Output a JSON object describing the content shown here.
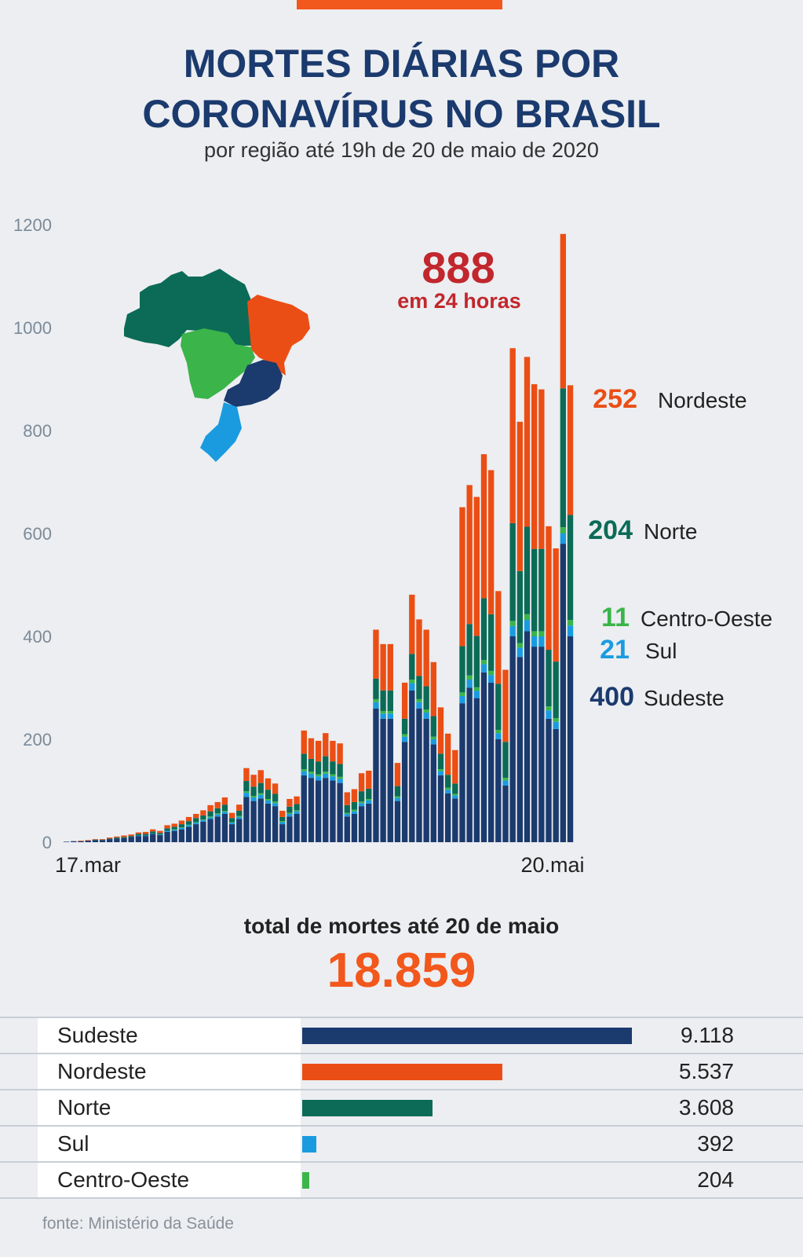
{
  "header": {
    "title_line1": "MORTES DIÁRIAS POR",
    "title_line2": "CORONAVÍRUS NO BRASIL",
    "subtitle": "por região até 19h de 20 de maio de 2020"
  },
  "colors": {
    "sudeste": "#1b3a6e",
    "sul": "#1a9be0",
    "centro_oeste": "#3bb44a",
    "norte": "#0b6b57",
    "nordeste": "#eb4e14",
    "accent": "#f2571c",
    "highlight": "#c1272d"
  },
  "callout": {
    "value": "888",
    "label": "em 24 horas"
  },
  "last_day_labels": [
    {
      "value": "252",
      "region": "Nordeste"
    },
    {
      "value": "204",
      "region": "Norte"
    },
    {
      "value": "11",
      "region": "Centro-Oeste"
    },
    {
      "value": "21",
      "region": "Sul"
    },
    {
      "value": "400",
      "region": "Sudeste"
    }
  ],
  "chart_data": {
    "type": "bar",
    "stacked": true,
    "x_start_label": "17.mar",
    "x_end_label": "20.mai",
    "yticks": [
      0,
      200,
      400,
      600,
      800,
      1000,
      1200
    ],
    "ylim": [
      0,
      1200
    ],
    "series": [
      {
        "name": "Sudeste",
        "values": [
          1,
          2,
          2,
          3,
          4,
          4,
          6,
          7,
          8,
          10,
          12,
          12,
          16,
          14,
          20,
          22,
          25,
          30,
          35,
          40,
          45,
          50,
          55,
          35,
          45,
          88,
          80,
          85,
          75,
          70,
          35,
          50,
          55,
          130,
          125,
          120,
          125,
          120,
          115,
          50,
          55,
          70,
          75,
          260,
          240,
          240,
          80,
          195,
          295,
          260,
          240,
          190,
          130,
          95,
          85,
          270,
          300,
          280,
          330,
          310,
          200,
          110,
          400,
          360,
          410,
          380,
          380,
          240,
          220,
          580,
          400
        ]
      },
      {
        "name": "Sul",
        "values": [
          0,
          0,
          0,
          0,
          0,
          0,
          0,
          0,
          0,
          0,
          1,
          1,
          1,
          1,
          2,
          2,
          3,
          3,
          3,
          3,
          3,
          4,
          4,
          3,
          4,
          8,
          7,
          7,
          6,
          6,
          4,
          5,
          5,
          8,
          8,
          8,
          8,
          8,
          8,
          5,
          5,
          6,
          6,
          12,
          10,
          10,
          6,
          10,
          14,
          12,
          12,
          10,
          8,
          7,
          6,
          14,
          16,
          14,
          16,
          15,
          12,
          10,
          20,
          18,
          22,
          20,
          20,
          16,
          14,
          20,
          21
        ]
      },
      {
        "name": "Centro-Oeste",
        "values": [
          0,
          0,
          0,
          0,
          0,
          0,
          0,
          0,
          0,
          0,
          0,
          0,
          0,
          0,
          0,
          1,
          1,
          1,
          1,
          1,
          2,
          2,
          2,
          1,
          2,
          3,
          3,
          3,
          3,
          3,
          2,
          2,
          2,
          4,
          4,
          4,
          4,
          4,
          4,
          2,
          3,
          3,
          3,
          6,
          5,
          5,
          3,
          5,
          7,
          6,
          6,
          5,
          4,
          4,
          3,
          7,
          8,
          7,
          8,
          8,
          6,
          5,
          10,
          9,
          11,
          10,
          10,
          8,
          7,
          12,
          11
        ]
      },
      {
        "name": "Norte",
        "values": [
          0,
          0,
          0,
          0,
          1,
          1,
          1,
          2,
          2,
          2,
          3,
          3,
          4,
          3,
          5,
          5,
          6,
          7,
          8,
          8,
          10,
          10,
          12,
          8,
          10,
          20,
          18,
          20,
          18,
          15,
          8,
          12,
          12,
          30,
          25,
          25,
          30,
          25,
          25,
          15,
          15,
          20,
          20,
          40,
          40,
          40,
          20,
          30,
          50,
          45,
          45,
          40,
          30,
          25,
          20,
          90,
          100,
          100,
          120,
          110,
          90,
          70,
          190,
          140,
          170,
          160,
          160,
          110,
          110,
          270,
          204
        ]
      },
      {
        "name": "Nordeste",
        "values": [
          0,
          0,
          1,
          1,
          1,
          1,
          2,
          2,
          3,
          3,
          3,
          4,
          4,
          4,
          6,
          6,
          7,
          8,
          8,
          10,
          12,
          12,
          14,
          10,
          12,
          25,
          23,
          25,
          22,
          20,
          12,
          15,
          15,
          45,
          40,
          40,
          45,
          40,
          40,
          25,
          25,
          35,
          35,
          95,
          90,
          90,
          45,
          70,
          115,
          110,
          110,
          105,
          90,
          80,
          65,
          270,
          270,
          270,
          280,
          280,
          180,
          140,
          340,
          290,
          330,
          320,
          310,
          240,
          220,
          300,
          252
        ]
      }
    ]
  },
  "totals": {
    "label": "total de mortes até 20 de maio",
    "value": "18.859",
    "max": 9118,
    "regions": [
      {
        "name": "Sudeste",
        "value": 9118,
        "display": "9.118",
        "color": "#1b3a6e"
      },
      {
        "name": "Nordeste",
        "value": 5537,
        "display": "5.537",
        "color": "#eb4e14"
      },
      {
        "name": "Norte",
        "value": 3608,
        "display": "3.608",
        "color": "#0b6b57"
      },
      {
        "name": "Sul",
        "value": 392,
        "display": "392",
        "color": "#1a9be0"
      },
      {
        "name": "Centro-Oeste",
        "value": 204,
        "display": "204",
        "color": "#3bb44a"
      }
    ]
  },
  "source": "fonte: Ministério da Saúde"
}
